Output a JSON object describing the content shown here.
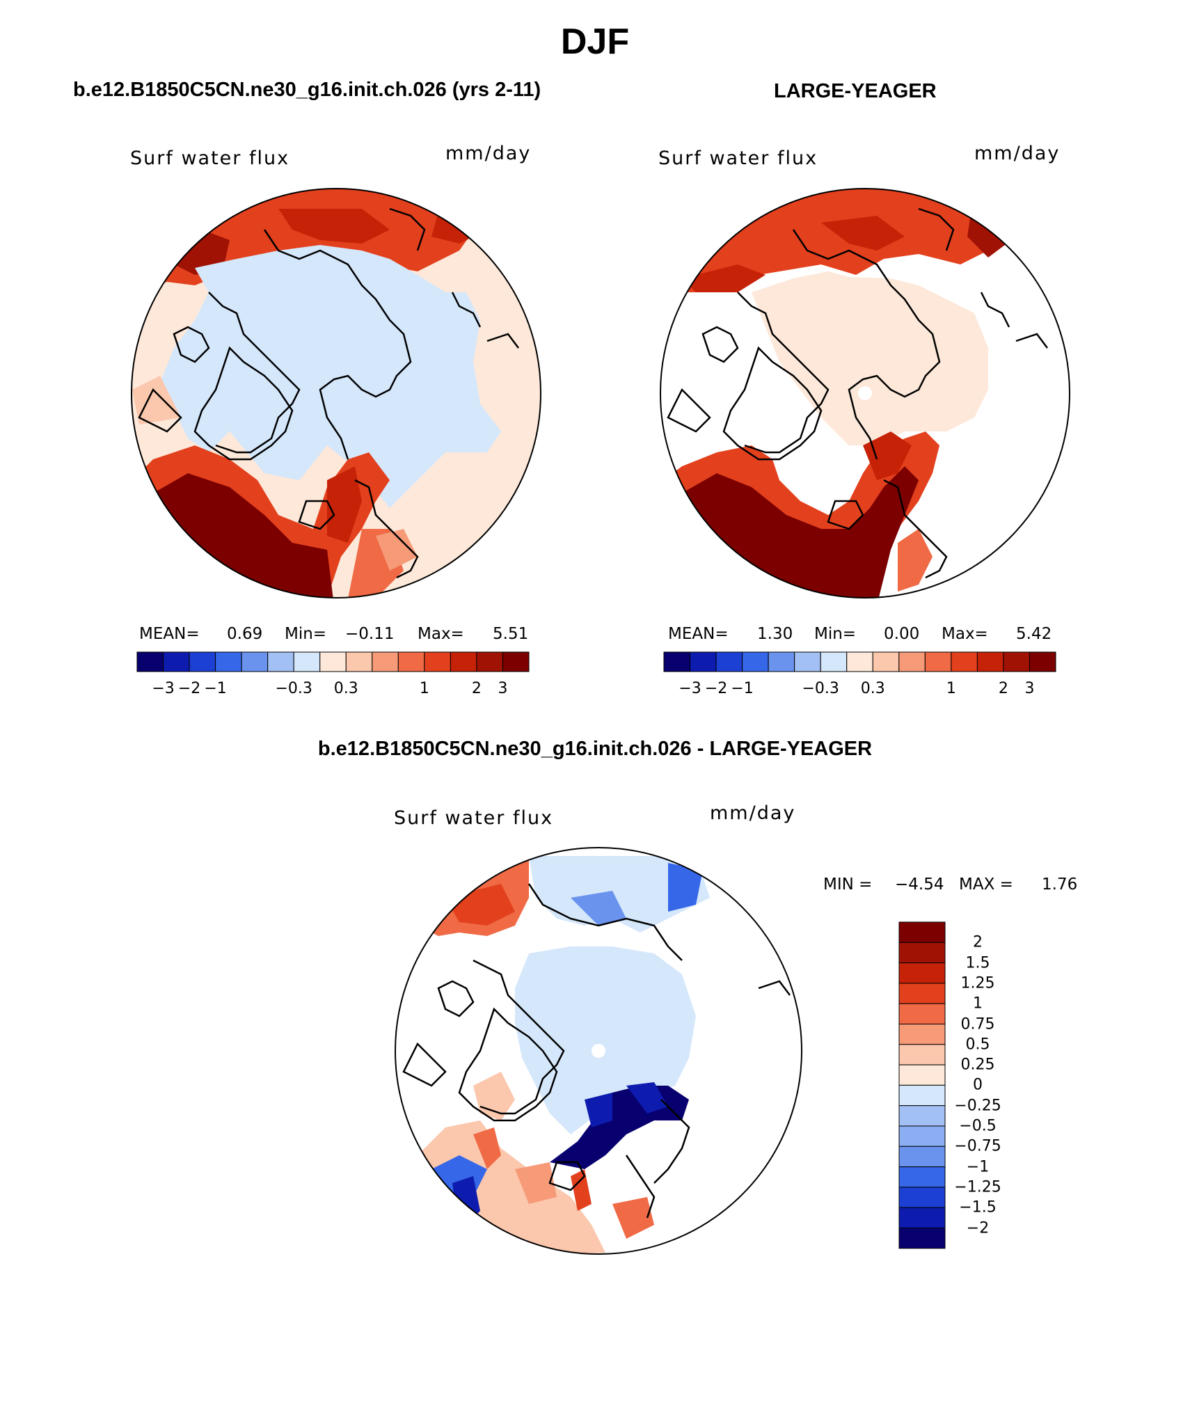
{
  "figure": {
    "season": "DJF",
    "left_title": "b.e12.B1850C5CN.ne30_g16.init.ch.026 (yrs 2-11)",
    "right_title": "LARGE-YEAGER",
    "diff_title": "b.e12.B1850C5CN.ne30_g16.init.ch.026 - LARGE-YEAGER"
  },
  "panels": [
    {
      "variable": "Surf water flux",
      "units": "mm/day",
      "stats": {
        "mean_label": "MEAN=",
        "mean": "0.69",
        "min_label": "Min=",
        "min": "−0.11",
        "max_label": "Max=",
        "max": "5.51"
      }
    },
    {
      "variable": "Surf water flux",
      "units": "mm/day",
      "stats": {
        "mean_label": "MEAN=",
        "mean": "1.30",
        "min_label": "Min=",
        "min": "0.00",
        "max_label": "Max=",
        "max": "5.42"
      }
    },
    {
      "variable": "Surf water flux",
      "units": "mm/day",
      "stats": {
        "min_label": "MIN =",
        "min": "−4.54",
        "max_label": "MAX =",
        "max": "1.76"
      }
    }
  ],
  "colorbar_horizontal": {
    "colors": [
      "#08006e",
      "#0d1cae",
      "#1c3fd4",
      "#3567e8",
      "#6a93ee",
      "#a3c0f4",
      "#d5e7fb",
      "#fde8d9",
      "#fbc7ad",
      "#f69a78",
      "#ef6a45",
      "#e3401d",
      "#c52207",
      "#a01203",
      "#7c0000"
    ],
    "labels": [
      "−3",
      "−2",
      "−1",
      "−0.3",
      "0.3",
      "1",
      "2",
      "3"
    ]
  },
  "colorbar_vertical": {
    "colors": [
      "#7c0000",
      "#a01203",
      "#c52207",
      "#e3401d",
      "#ef6a45",
      "#f69a78",
      "#fbc7ad",
      "#fde8d9",
      "#d5e7fb",
      "#a3c0f4",
      "#8aaef1",
      "#6a93ee",
      "#3567e8",
      "#1c3fd4",
      "#0d1cae",
      "#08006e"
    ],
    "labels": [
      "2",
      "1.5",
      "1.25",
      "1",
      "0.75",
      "0.5",
      "0.25",
      "0",
      "−0.25",
      "−0.5",
      "−0.75",
      "−1",
      "−1.25",
      "−1.5",
      "−2"
    ]
  }
}
